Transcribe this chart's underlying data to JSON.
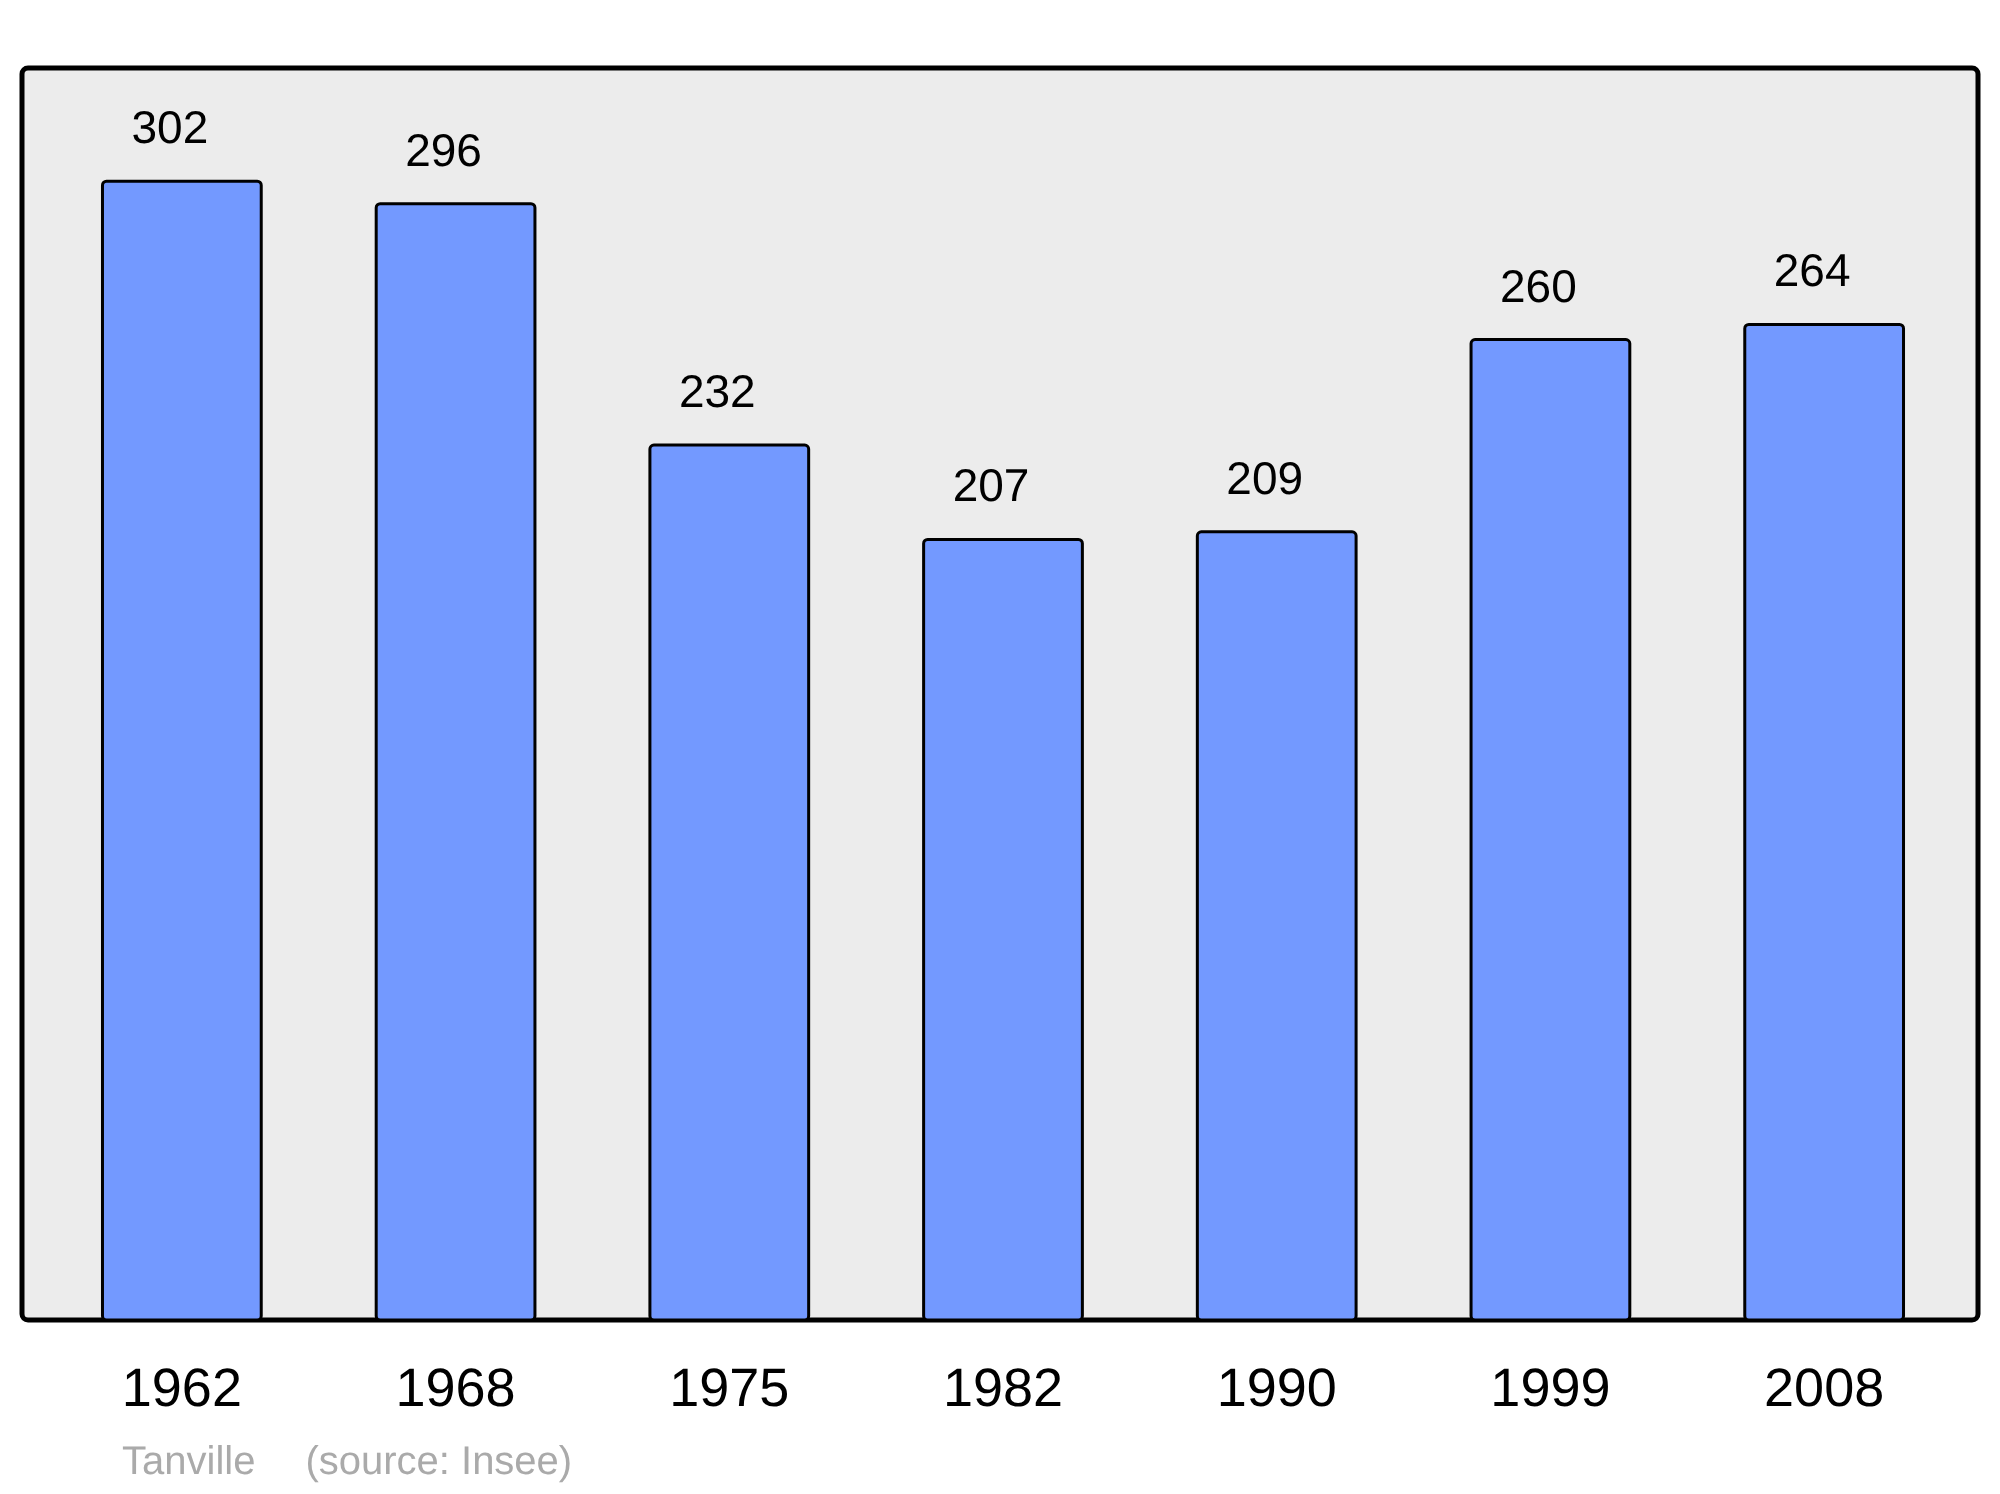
{
  "chart_data": {
    "type": "bar",
    "categories": [
      "1962",
      "1968",
      "1975",
      "1982",
      "1990",
      "1999",
      "2008"
    ],
    "values": [
      302,
      296,
      232,
      207,
      209,
      260,
      264
    ],
    "color": "#7399ff",
    "ylim": [
      0,
      332
    ],
    "data_labels": true,
    "grid": false,
    "annotations": [
      "Tanville",
      "(source: Insee)"
    ]
  }
}
